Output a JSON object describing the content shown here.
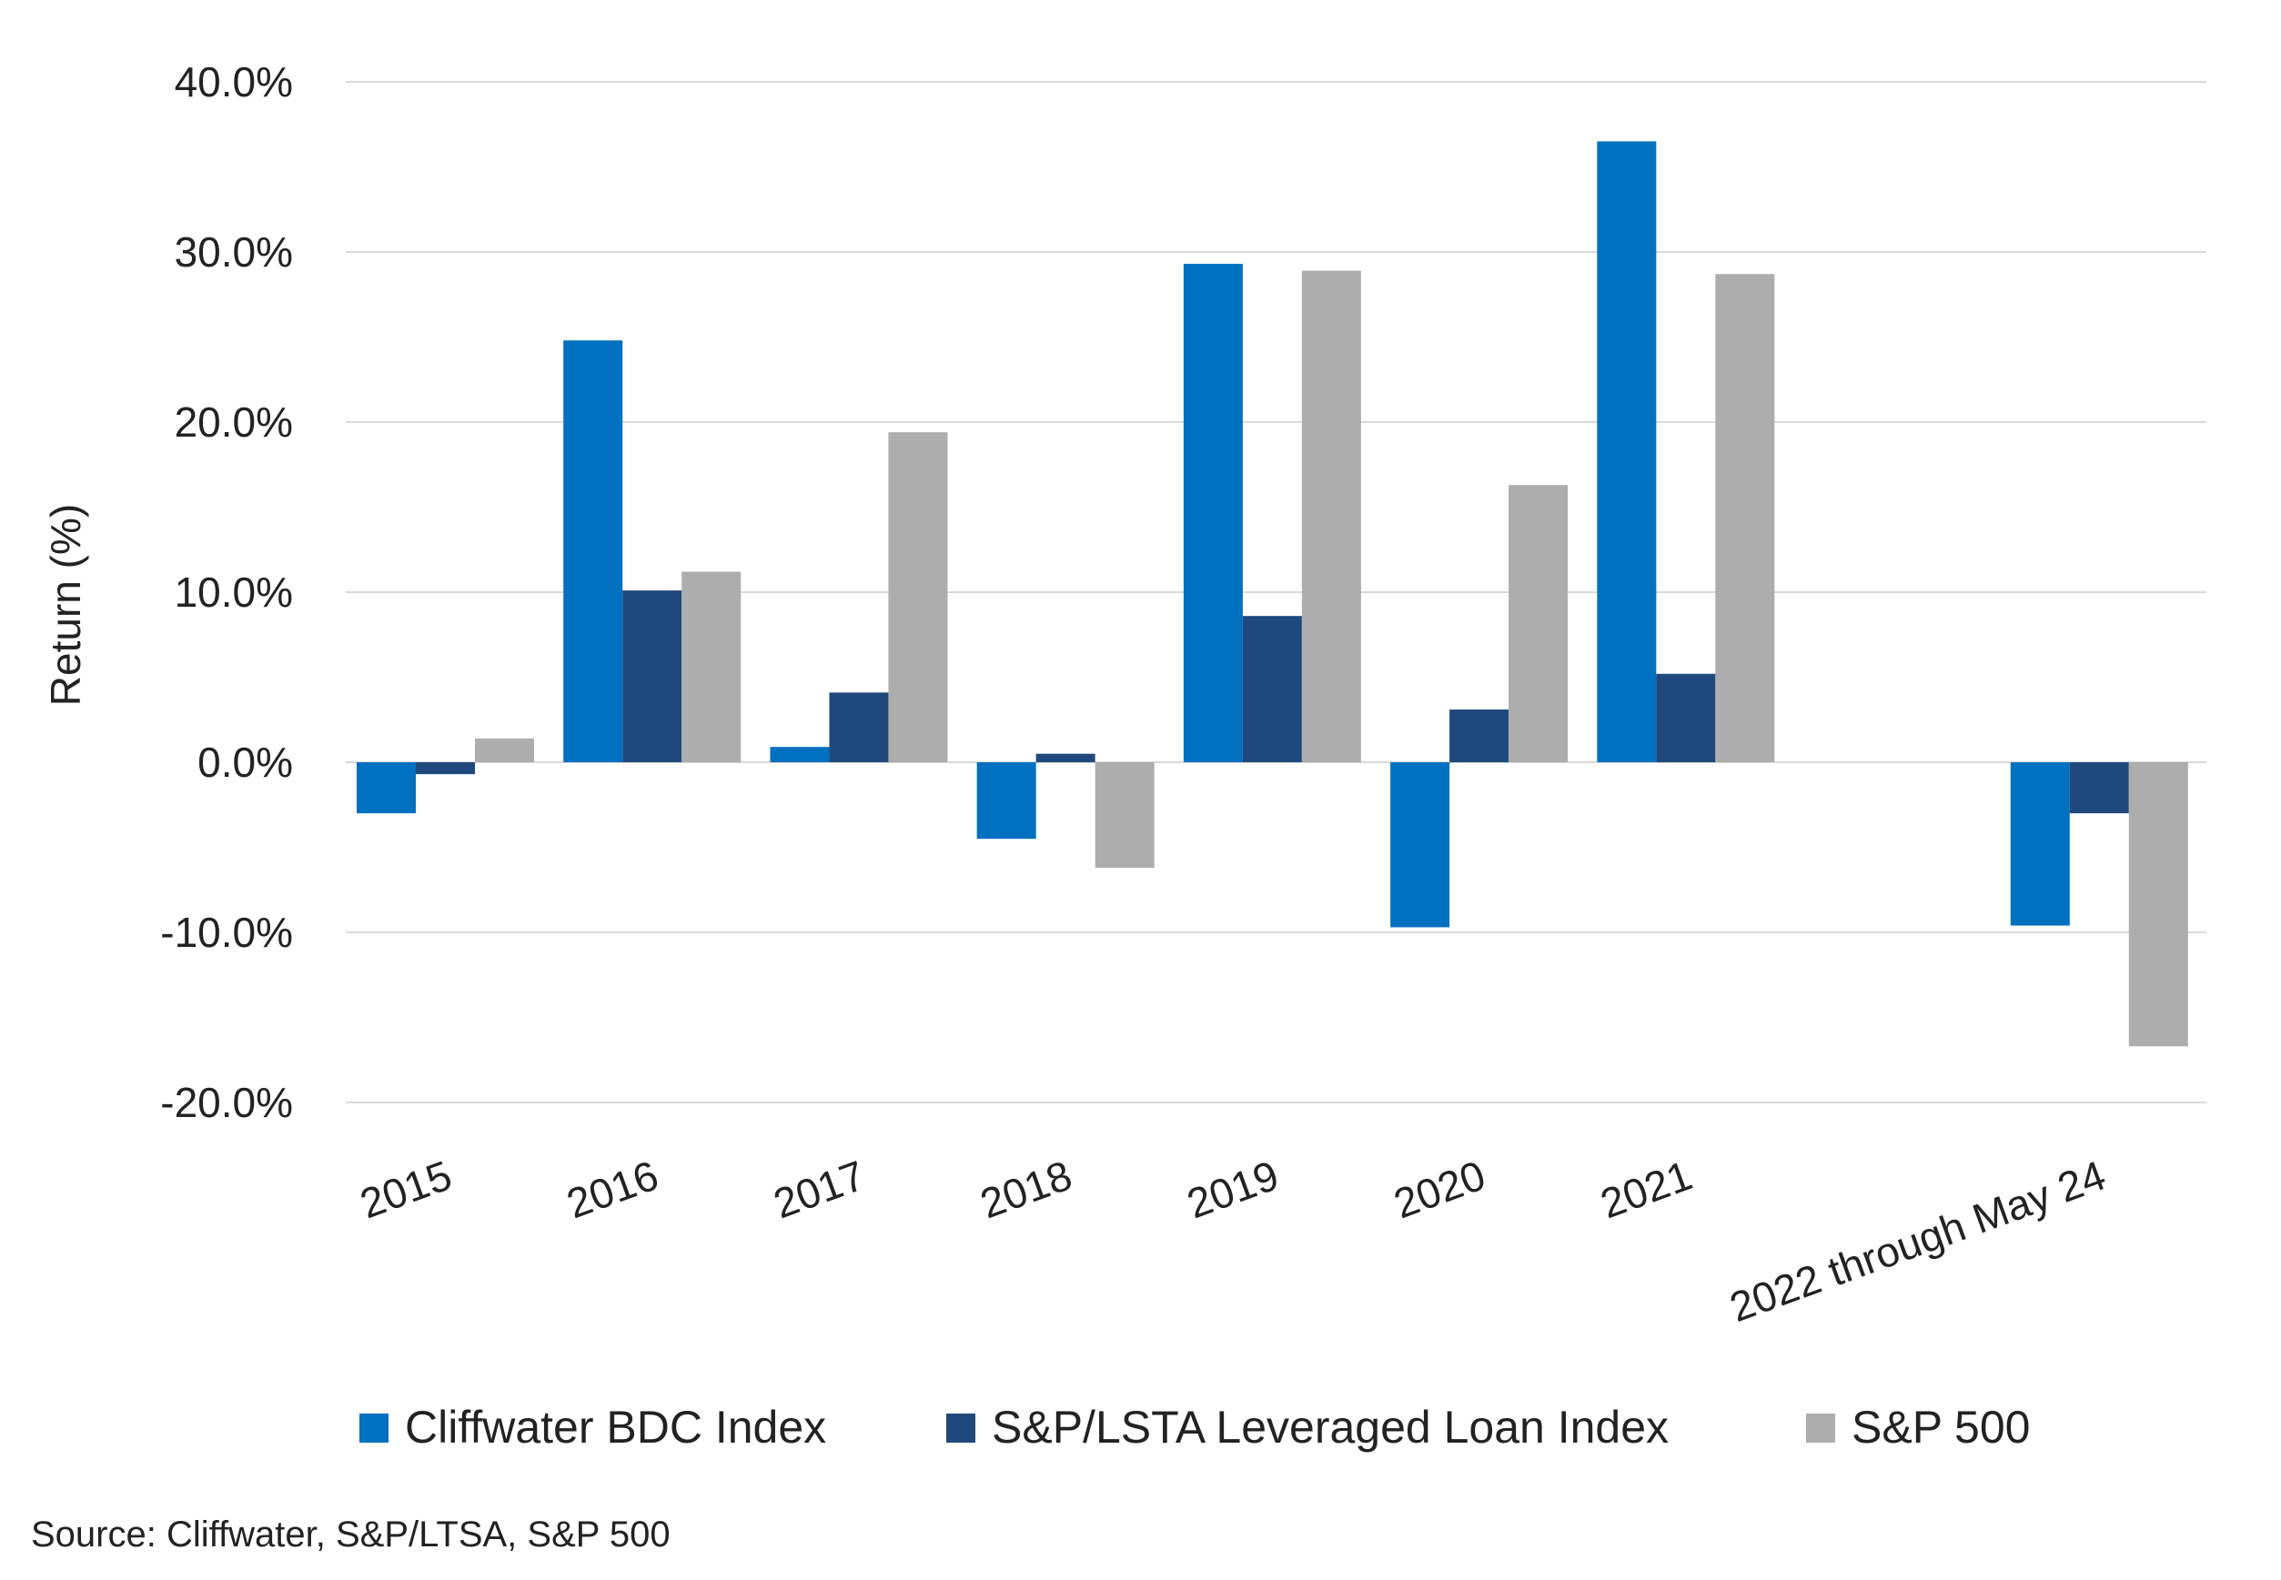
{
  "chart_data": {
    "type": "bar",
    "categories": [
      "2015",
      "2016",
      "2017",
      "2018",
      "2019",
      "2020",
      "2021",
      "2022 through May 24"
    ],
    "series": [
      {
        "name": "Cliffwater BDC Index",
        "color": "#0070C0",
        "values": [
          -3.0,
          24.8,
          0.9,
          -4.5,
          29.3,
          -9.7,
          36.5,
          -9.6
        ]
      },
      {
        "name": "S&P/LSTA Leveraged Loan Index",
        "color": "#1F497D",
        "values": [
          -0.7,
          10.1,
          4.1,
          0.5,
          8.6,
          3.1,
          5.2,
          -3.0
        ]
      },
      {
        "name": "S&P 500",
        "color": "#ADADAD",
        "values": [
          1.4,
          11.2,
          19.4,
          -6.2,
          28.9,
          16.3,
          28.7,
          -16.7
        ]
      }
    ],
    "ylabel": "Return (%)",
    "xlabel": "",
    "ylim": [
      -20,
      40
    ],
    "yticks": [
      "40.0%",
      "30.0%",
      "20.0%",
      "10.0%",
      "0.0%",
      "-10.0%",
      "-20.0%"
    ],
    "ytick_values": [
      40,
      30,
      20,
      10,
      0,
      -10,
      -20
    ],
    "grid": true,
    "legend_position": "bottom"
  },
  "source": "Source: Cliffwater, S&P/LTSA, S&P 500"
}
